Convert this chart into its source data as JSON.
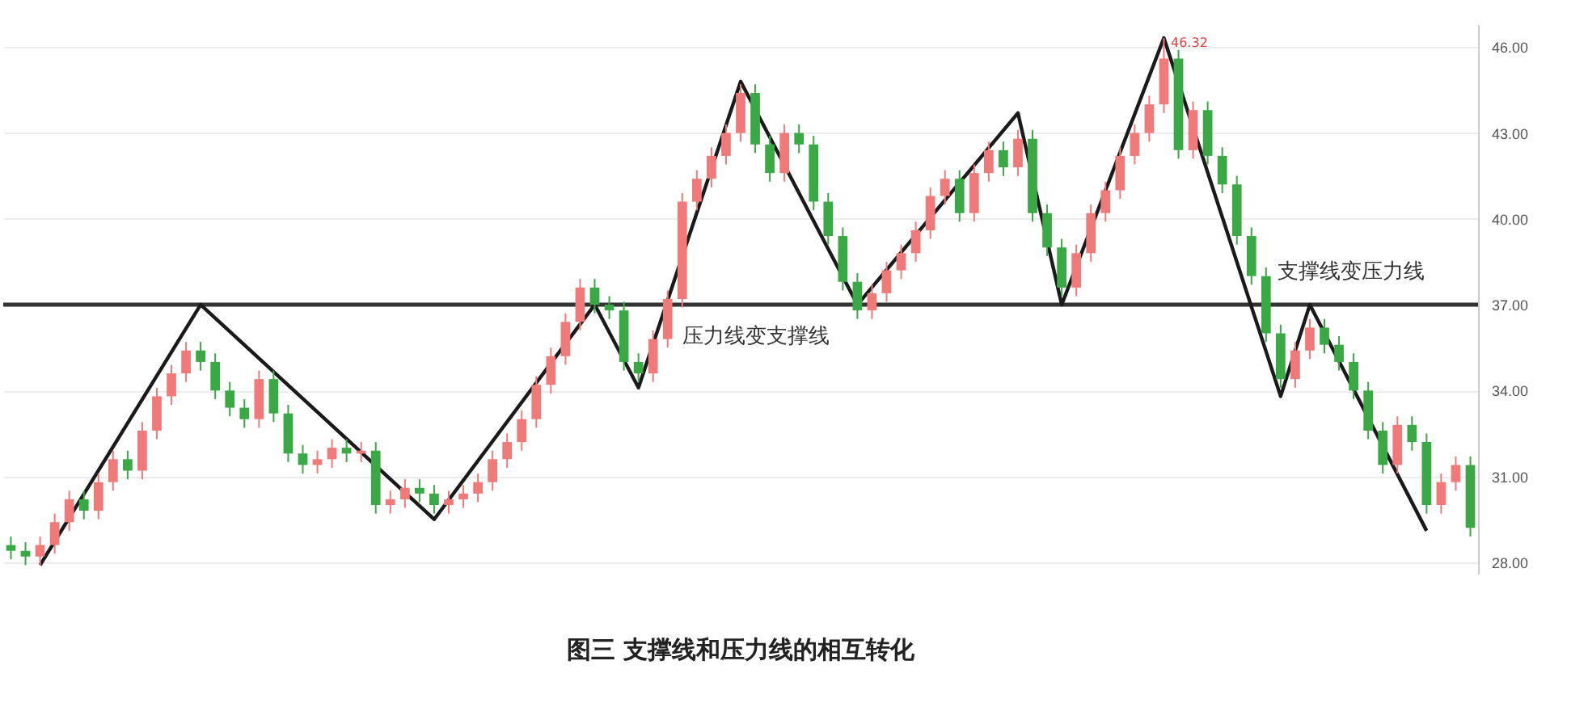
{
  "chart_data": {
    "type": "candlestick",
    "title": "图三  支撑线和压力线的相互转化",
    "categories": [
      null,
      null,
      null,
      null,
      null,
      null,
      null,
      null,
      null,
      null,
      null,
      null,
      null,
      null,
      null,
      null,
      null,
      null,
      null,
      null,
      null,
      null,
      null,
      null,
      null,
      null,
      null,
      null,
      null,
      null,
      null,
      null,
      null,
      null,
      null,
      null,
      null,
      null,
      null,
      null,
      null,
      null,
      null,
      null,
      null,
      null,
      null,
      null,
      null,
      null,
      null,
      null,
      null,
      null,
      null,
      null,
      null,
      null,
      null,
      null,
      null,
      null,
      null,
      null,
      null,
      null,
      null,
      null,
      null,
      null,
      null,
      null,
      null,
      null,
      null,
      null,
      null,
      null,
      null,
      null,
      null,
      null,
      null,
      null,
      null,
      null,
      null,
      null,
      null,
      null,
      null,
      null,
      null,
      null,
      null,
      null,
      null,
      null,
      null,
      null,
      null
    ],
    "ohlc": [
      [
        28.6,
        28.9,
        28.1,
        28.4
      ],
      [
        28.4,
        28.7,
        27.9,
        28.2
      ],
      [
        28.2,
        28.9,
        27.9,
        28.6
      ],
      [
        28.6,
        29.7,
        28.3,
        29.4
      ],
      [
        29.4,
        30.5,
        29.1,
        30.2
      ],
      [
        30.2,
        30.5,
        29.5,
        29.8
      ],
      [
        29.8,
        31.1,
        29.5,
        30.8
      ],
      [
        30.8,
        31.9,
        30.5,
        31.6
      ],
      [
        31.6,
        31.9,
        30.9,
        31.2
      ],
      [
        31.2,
        32.9,
        30.9,
        32.6
      ],
      [
        32.6,
        34.1,
        32.3,
        33.8
      ],
      [
        33.8,
        34.9,
        33.5,
        34.6
      ],
      [
        34.6,
        35.7,
        34.3,
        35.4
      ],
      [
        35.4,
        35.7,
        34.7,
        35.0
      ],
      [
        35.0,
        35.3,
        33.7,
        34.0
      ],
      [
        34.0,
        34.3,
        33.1,
        33.4
      ],
      [
        33.4,
        33.7,
        32.7,
        33.0
      ],
      [
        33.0,
        34.7,
        32.7,
        34.4
      ],
      [
        34.4,
        34.7,
        32.9,
        33.2
      ],
      [
        33.2,
        33.5,
        31.5,
        31.8
      ],
      [
        31.8,
        32.1,
        31.1,
        31.4
      ],
      [
        31.4,
        31.9,
        31.1,
        31.6
      ],
      [
        31.6,
        32.3,
        31.3,
        32.0
      ],
      [
        32.0,
        32.3,
        31.5,
        31.8
      ],
      [
        31.8,
        32.2,
        31.5,
        31.9
      ],
      [
        31.9,
        32.2,
        29.7,
        30.0
      ],
      [
        30.0,
        30.5,
        29.7,
        30.2
      ],
      [
        30.2,
        30.9,
        29.9,
        30.6
      ],
      [
        30.6,
        30.9,
        30.1,
        30.4
      ],
      [
        30.4,
        30.7,
        29.7,
        30.0
      ],
      [
        30.0,
        30.5,
        29.7,
        30.2
      ],
      [
        30.2,
        30.7,
        29.9,
        30.4
      ],
      [
        30.4,
        31.1,
        30.1,
        30.8
      ],
      [
        30.8,
        31.9,
        30.5,
        31.6
      ],
      [
        31.6,
        32.5,
        31.3,
        32.2
      ],
      [
        32.2,
        33.3,
        31.9,
        33.0
      ],
      [
        33.0,
        34.5,
        32.7,
        34.2
      ],
      [
        34.2,
        35.5,
        33.9,
        35.2
      ],
      [
        35.2,
        36.7,
        34.9,
        36.4
      ],
      [
        36.4,
        37.9,
        36.1,
        37.6
      ],
      [
        37.6,
        37.9,
        36.7,
        37.0
      ],
      [
        37.0,
        37.3,
        36.5,
        36.8
      ],
      [
        36.8,
        37.1,
        34.7,
        35.0
      ],
      [
        35.0,
        35.3,
        34.3,
        34.6
      ],
      [
        34.6,
        36.1,
        34.3,
        35.8
      ],
      [
        35.8,
        37.5,
        35.5,
        37.2
      ],
      [
        37.2,
        40.9,
        36.9,
        40.6
      ],
      [
        40.6,
        41.7,
        40.3,
        41.4
      ],
      [
        41.4,
        42.5,
        41.1,
        42.2
      ],
      [
        42.2,
        43.3,
        41.9,
        43.0
      ],
      [
        43.0,
        44.7,
        42.7,
        44.4
      ],
      [
        44.4,
        44.7,
        42.3,
        42.6
      ],
      [
        42.6,
        42.9,
        41.3,
        41.6
      ],
      [
        41.6,
        43.3,
        41.3,
        43.0
      ],
      [
        43.0,
        43.3,
        42.3,
        42.6
      ],
      [
        42.6,
        42.9,
        40.3,
        40.6
      ],
      [
        40.6,
        40.9,
        39.1,
        39.4
      ],
      [
        39.4,
        39.7,
        37.5,
        37.8
      ],
      [
        37.8,
        38.1,
        36.5,
        36.8
      ],
      [
        36.8,
        37.7,
        36.5,
        37.4
      ],
      [
        37.4,
        38.5,
        37.1,
        38.2
      ],
      [
        38.2,
        39.1,
        37.9,
        38.8
      ],
      [
        38.8,
        39.9,
        38.5,
        39.6
      ],
      [
        39.6,
        41.1,
        39.3,
        40.8
      ],
      [
        40.8,
        41.7,
        40.5,
        41.4
      ],
      [
        41.4,
        41.7,
        39.9,
        40.2
      ],
      [
        40.2,
        41.9,
        39.9,
        41.6
      ],
      [
        41.6,
        42.7,
        41.3,
        42.4
      ],
      [
        42.4,
        42.7,
        41.5,
        41.8
      ],
      [
        41.8,
        43.1,
        41.5,
        42.8
      ],
      [
        42.8,
        43.1,
        39.9,
        40.2
      ],
      [
        40.2,
        40.5,
        38.7,
        39.0
      ],
      [
        39.0,
        39.3,
        37.3,
        37.6
      ],
      [
        37.6,
        39.1,
        37.3,
        38.8
      ],
      [
        38.8,
        40.5,
        38.5,
        40.2
      ],
      [
        40.2,
        41.3,
        39.9,
        41.0
      ],
      [
        41.0,
        42.5,
        40.7,
        42.2
      ],
      [
        42.2,
        43.3,
        41.9,
        43.0
      ],
      [
        43.0,
        44.3,
        42.7,
        44.0
      ],
      [
        44.0,
        46.32,
        43.7,
        45.6
      ],
      [
        45.6,
        45.9,
        42.1,
        42.4
      ],
      [
        42.4,
        44.1,
        42.1,
        43.8
      ],
      [
        43.8,
        44.1,
        41.9,
        42.2
      ],
      [
        42.2,
        42.5,
        40.9,
        41.2
      ],
      [
        41.2,
        41.5,
        39.1,
        39.4
      ],
      [
        39.4,
        39.7,
        37.7,
        38.0
      ],
      [
        38.0,
        38.3,
        35.7,
        36.0
      ],
      [
        36.0,
        36.3,
        34.1,
        34.4
      ],
      [
        34.4,
        35.7,
        34.1,
        35.4
      ],
      [
        35.4,
        36.5,
        35.1,
        36.2
      ],
      [
        36.2,
        36.5,
        35.3,
        35.6
      ],
      [
        35.6,
        35.9,
        34.7,
        35.0
      ],
      [
        35.0,
        35.3,
        33.7,
        34.0
      ],
      [
        34.0,
        34.3,
        32.3,
        32.6
      ],
      [
        32.6,
        32.9,
        31.1,
        31.4
      ],
      [
        31.4,
        33.1,
        31.1,
        32.8
      ],
      [
        32.8,
        33.1,
        31.9,
        32.2
      ],
      [
        32.2,
        32.5,
        29.7,
        30.0
      ],
      [
        30.0,
        31.1,
        29.7,
        30.8
      ],
      [
        30.8,
        31.7,
        30.5,
        31.4
      ],
      [
        31.4,
        31.7,
        28.9,
        29.2
      ]
    ],
    "series": [
      {
        "type": "line",
        "color": "#1a1a1a",
        "values": [
          null,
          null,
          27.9,
          null,
          null,
          null,
          null,
          null,
          null,
          null,
          null,
          null,
          null,
          37.0,
          null,
          null,
          null,
          null,
          null,
          null,
          null,
          null,
          null,
          null,
          null,
          null,
          null,
          null,
          null,
          29.5,
          null,
          null,
          null,
          null,
          null,
          null,
          null,
          null,
          null,
          null,
          37.0,
          null,
          null,
          34.1,
          null,
          null,
          null,
          null,
          null,
          null,
          44.8,
          null,
          null,
          null,
          null,
          null,
          null,
          null,
          37.0,
          null,
          null,
          null,
          null,
          null,
          null,
          null,
          null,
          null,
          null,
          43.7,
          null,
          null,
          37.0,
          null,
          null,
          null,
          null,
          null,
          null,
          46.32,
          null,
          null,
          null,
          null,
          null,
          null,
          null,
          33.8,
          null,
          37.0,
          null,
          null,
          null,
          null,
          null,
          null,
          null,
          29.1,
          null,
          null,
          null
        ]
      }
    ],
    "ylim": [
      27.6,
      46.8
    ],
    "yticks": [
      {
        "value": 28,
        "label": "28.00"
      },
      {
        "value": 31,
        "label": "31.00"
      },
      {
        "value": 34,
        "label": "34.00"
      },
      {
        "value": 37,
        "label": "37.00"
      },
      {
        "value": 40,
        "label": "40.00"
      },
      {
        "value": 43,
        "label": "43.00"
      },
      {
        "value": 46,
        "label": "46.00"
      }
    ],
    "ref_lines": [
      {
        "axis": "y",
        "value": 37.0,
        "color": "#333333"
      }
    ],
    "annotations": [
      "压力线变支撑线",
      "支撑线变压力线",
      "46.32"
    ],
    "grid": true,
    "tick_labels": "y"
  }
}
